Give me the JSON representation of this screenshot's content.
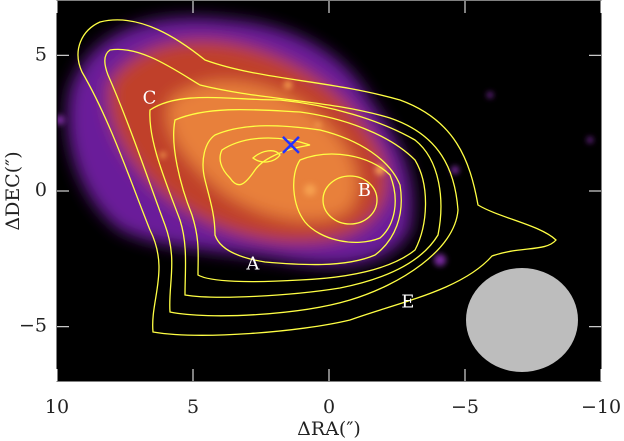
{
  "chart_data": {
    "type": "image",
    "xlabel": "ΔRA(″)",
    "ylabel": "ΔDEC(″)",
    "xlim": [
      10,
      -10
    ],
    "ylim": [
      -7,
      7
    ],
    "xticks": [
      10,
      5,
      0,
      {
        "value": -5,
        "label": "−5"
      },
      {
        "value": -10,
        "label": "−10"
      }
    ],
    "yticks": [
      {
        "value": -5,
        "label": "−5"
      },
      0,
      5
    ],
    "annotations": [
      {
        "text": "A",
        "x": 2.8,
        "y": -2.7
      },
      {
        "text": "B",
        "x": -1.3,
        "y": 0
      },
      {
        "text": "C",
        "x": 6.6,
        "y": 3.4
      },
      {
        "text": "E",
        "x": -2.9,
        "y": -4.1
      }
    ],
    "marker": {
      "x": 1.4,
      "y": 1.7,
      "color": "#2233ff"
    },
    "contour_color": "#ffff44"
  }
}
